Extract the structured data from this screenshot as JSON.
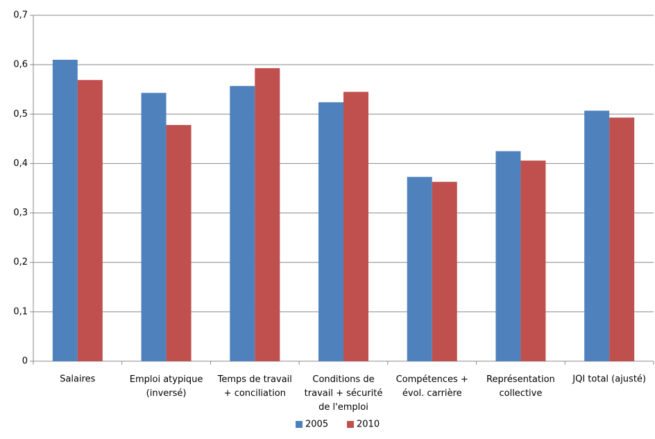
{
  "chart_data": {
    "type": "bar",
    "categories": [
      "Salaires",
      "Emploi atypique\n(inversé)",
      "Temps de travail\n+ conciliation",
      "Conditions de\ntravail + sécurité\nde l'emploi",
      "Compétences +\névol. carrière",
      "Représentation\ncollective",
      "JQI total (ajusté)"
    ],
    "series": [
      {
        "name": "2005",
        "color": "#4f81bd",
        "values": [
          0.61,
          0.543,
          0.557,
          0.524,
          0.373,
          0.425,
          0.507
        ]
      },
      {
        "name": "2010",
        "color": "#c0504d",
        "values": [
          0.569,
          0.478,
          0.593,
          0.545,
          0.363,
          0.406,
          0.493
        ]
      }
    ],
    "ylim": [
      0,
      0.7
    ],
    "yticks": [
      0,
      {
        "value": 0.1,
        "label": "0,1"
      },
      {
        "value": 0.2,
        "label": "0,2"
      },
      {
        "value": 0.3,
        "label": "0,3"
      },
      {
        "value": 0.4,
        "label": "0,4"
      },
      {
        "value": 0.5,
        "label": "0,5"
      },
      {
        "value": 0.6,
        "label": "0,6"
      },
      {
        "value": 0.7,
        "label": "0,7"
      }
    ],
    "grid": true,
    "legend": "bottom"
  }
}
